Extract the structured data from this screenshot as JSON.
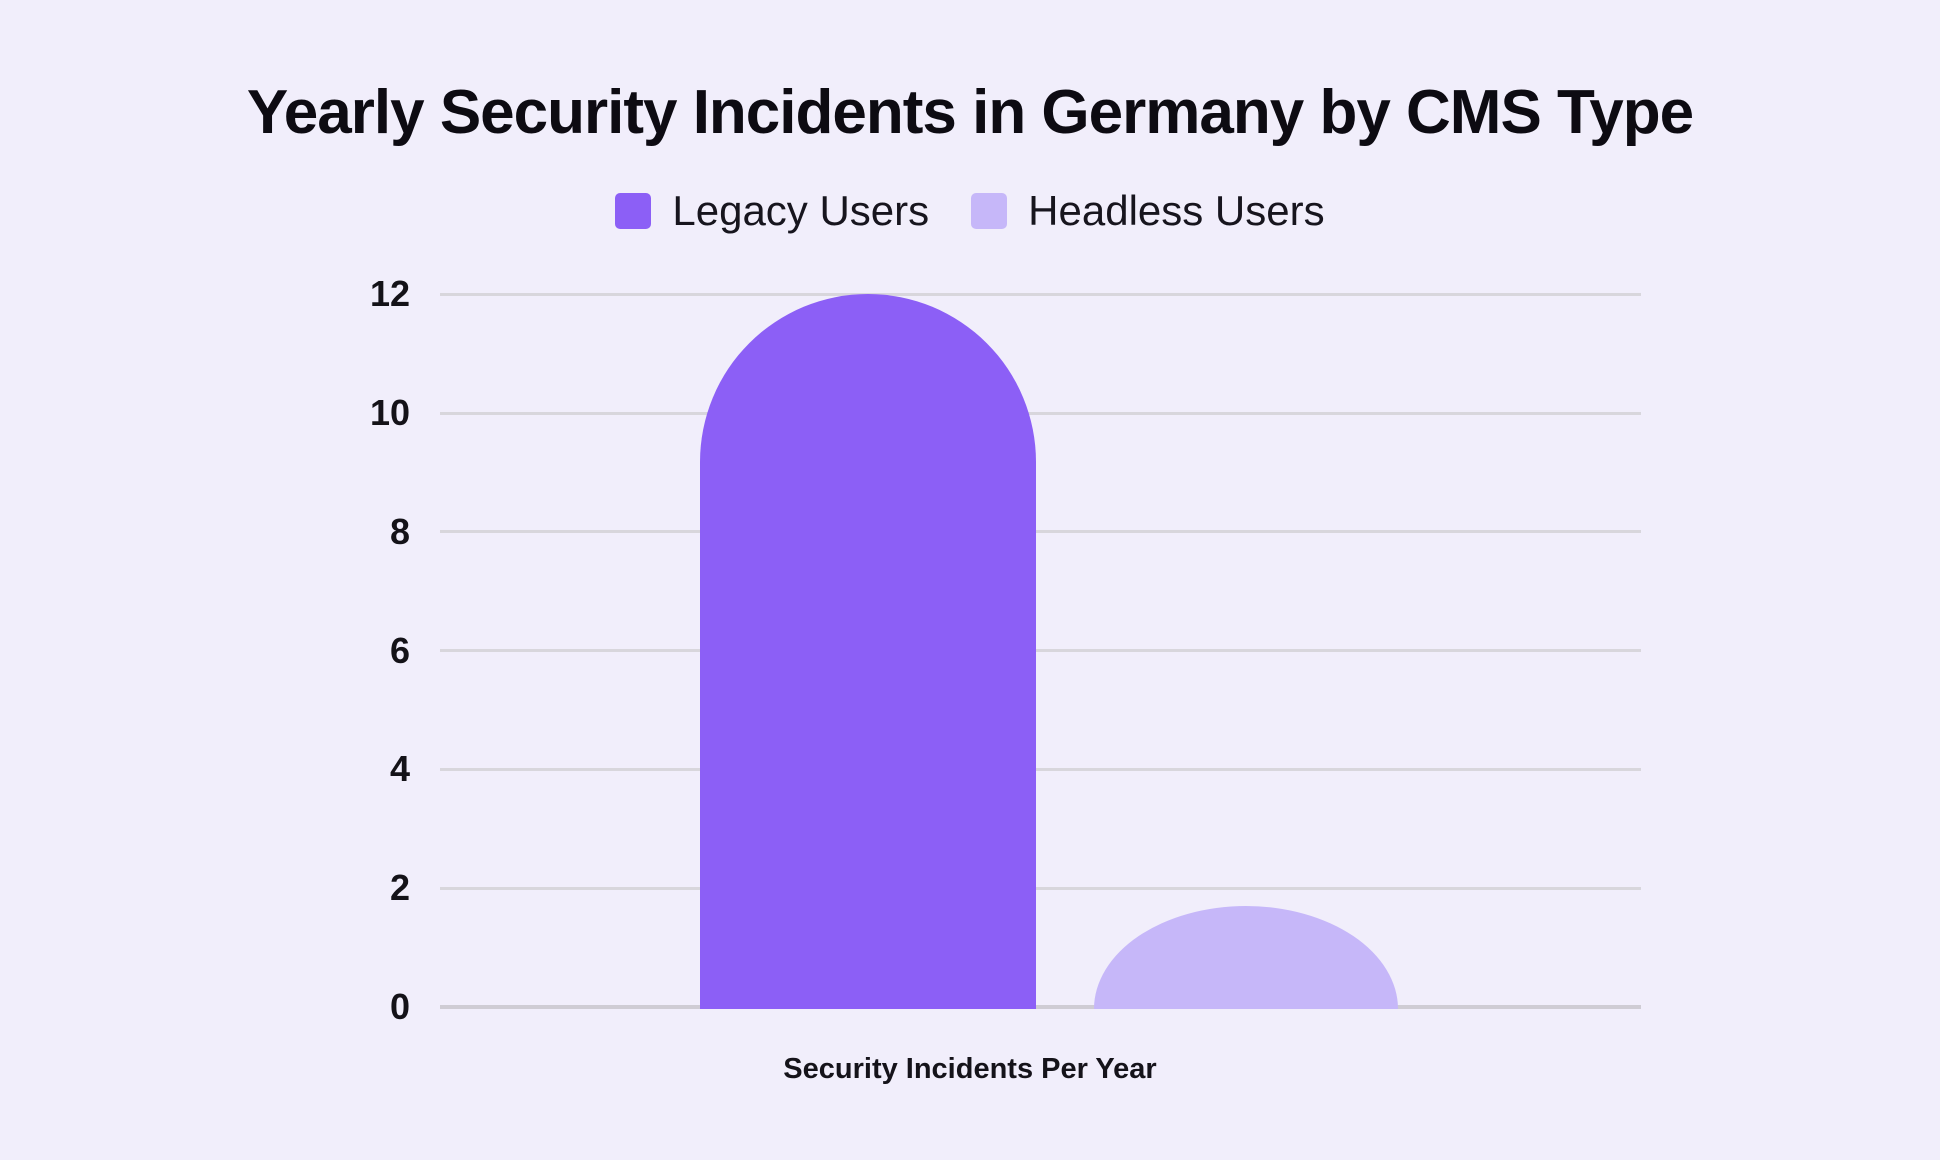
{
  "title": "Yearly Security Incidents in Germany by CMS Type",
  "x_axis_label": "Security Incidents Per Year",
  "legend": {
    "items": [
      {
        "label": "Legacy Users",
        "color": "#8c5ff6"
      },
      {
        "label": "Headless Users",
        "color": "#c6b7f9"
      }
    ]
  },
  "colors": {
    "background": "#f1eefb",
    "gridline": "#d8d6dc",
    "baseline": "#cfccd4",
    "title_text": "#0d0b12",
    "tick_text": "#141218"
  },
  "chart_data": {
    "type": "bar",
    "title": "Yearly Security Incidents in Germany by CMS Type",
    "xlabel": "Security Incidents Per Year",
    "ylabel": "",
    "categories": [
      "Security Incidents Per Year"
    ],
    "series": [
      {
        "name": "Legacy Users",
        "values": [
          12
        ],
        "color": "#8c5ff6"
      },
      {
        "name": "Headless Users",
        "values": [
          1.7
        ],
        "color": "#c6b7f9"
      }
    ],
    "ylim": [
      0,
      12
    ],
    "yticks": [
      0,
      2,
      4,
      6,
      8,
      10,
      12
    ],
    "grid": true,
    "legend_position": "top",
    "bar_style": "rounded-top",
    "data_labels": false
  }
}
